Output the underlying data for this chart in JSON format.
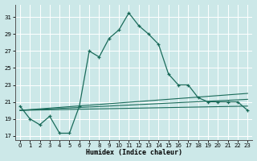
{
  "title": "",
  "xlabel": "Humidex (Indice chaleur)",
  "bg_color": "#cce8e8",
  "grid_color": "#ffffff",
  "line_color": "#1a6b5a",
  "xlim": [
    -0.5,
    23.5
  ],
  "ylim": [
    16.5,
    32.5
  ],
  "yticks": [
    17,
    19,
    21,
    23,
    25,
    27,
    29,
    31
  ],
  "xticks": [
    0,
    1,
    2,
    3,
    4,
    5,
    6,
    7,
    8,
    9,
    10,
    11,
    12,
    13,
    14,
    15,
    16,
    17,
    18,
    19,
    20,
    21,
    22,
    23
  ],
  "x": [
    0,
    1,
    2,
    3,
    4,
    5,
    6,
    7,
    8,
    9,
    10,
    11,
    12,
    13,
    14,
    15,
    16,
    17,
    18,
    19,
    20,
    21,
    22,
    23
  ],
  "y_main": [
    20.5,
    19.0,
    18.3,
    19.3,
    17.3,
    17.3,
    20.5,
    27.0,
    26.3,
    28.5,
    29.5,
    31.5,
    30.0,
    29.0,
    27.8,
    24.3,
    23.0,
    23.0,
    21.5,
    21.0,
    21.0,
    21.0,
    21.0,
    20.0
  ],
  "y_diag1_start": 20.0,
  "y_diag1_end": 22.0,
  "y_diag2_start": 20.0,
  "y_diag2_end": 21.3,
  "y_diag3_start": 20.0,
  "y_diag3_end": 20.5,
  "xlabel_fontsize": 6.0,
  "tick_fontsize": 5.0
}
